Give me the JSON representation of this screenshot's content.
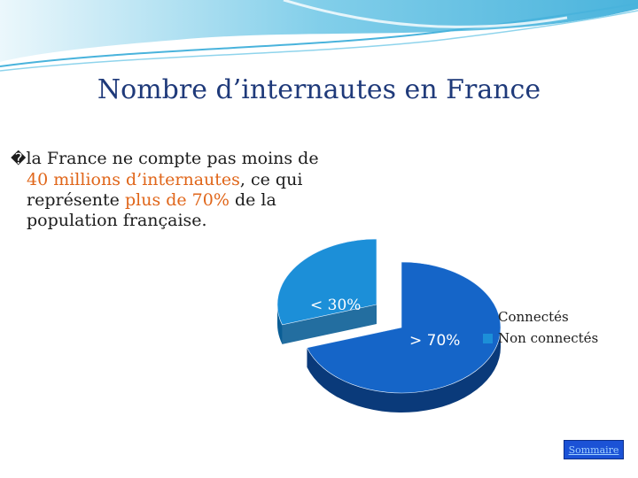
{
  "slide": {
    "title": "Nombre d’internautes en France",
    "bullet_mark": "�",
    "text": {
      "line1": "la France ne compte pas moins de",
      "line2_highlight": "40 millions d’internautes",
      "line2_rest": ", ce qui",
      "line3_start": "représente ",
      "line3_highlight": "plus de 70%",
      "line3_rest": " de la",
      "line4": "population française."
    },
    "sommaire_label": "Sommaire"
  },
  "colors": {
    "accent_text": "#e0661a",
    "title": "#1f3a7a",
    "connected": "#1565c8",
    "not_connected": "#1c8fd8"
  },
  "chart_data": {
    "type": "pie",
    "categories": [
      "Connectés",
      "Non connectés"
    ],
    "values": [
      70,
      30
    ],
    "data_labels": [
      "> 70%",
      "< 30%"
    ],
    "legend": [
      "Connectés",
      "Non connectés"
    ],
    "legend_position": "right",
    "style": "3d-exploded"
  }
}
